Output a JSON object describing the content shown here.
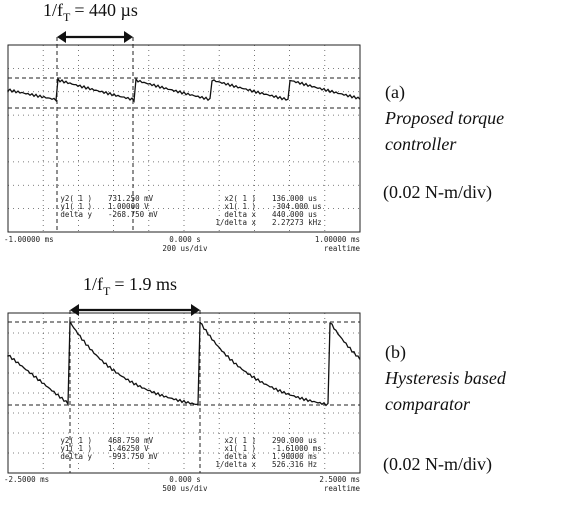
{
  "panel_a": {
    "period_label": {
      "prefix": "1/f",
      "subscript": "T",
      "suffix": "= 440 µs"
    },
    "readouts_left": [
      [
        "y2( 1 )",
        "731.250 mV"
      ],
      [
        "y1( 1 )",
        "1.00000 V"
      ],
      [
        "delta y",
        "-268.750 mV"
      ]
    ],
    "readouts_right": [
      [
        "x2( 1 )",
        "136.000 us"
      ],
      [
        "x1( 1 )",
        "-304.000 us"
      ],
      [
        "delta x",
        "440.000 us"
      ],
      [
        "1/delta x",
        "2.27273 kHz"
      ]
    ],
    "axis": {
      "left": "-1.00000 ms",
      "center": "0.000 s",
      "scale": "200 us/div",
      "right": "1.00000 ms",
      "mode": "realtime"
    },
    "tag": "(a)",
    "caption": [
      "Proposed torque",
      "controller"
    ],
    "gain": "(0.02 N-m/div)"
  },
  "panel_b": {
    "period_label": {
      "prefix": "1/f",
      "subscript": "T",
      "suffix": "= 1.9 ms"
    },
    "readouts_left": [
      [
        "y2( 1 )",
        "468.750 mV"
      ],
      [
        "y1( 1 )",
        "1.46250 V"
      ],
      [
        "delta y",
        "-993.750 mV"
      ]
    ],
    "readouts_right": [
      [
        "x2( 1 )",
        "290.000 us"
      ],
      [
        "x1( 1 )",
        "-1.61000 ms"
      ],
      [
        "delta x",
        "1.90000 ms"
      ],
      [
        "1/delta x",
        "526.316 Hz"
      ]
    ],
    "axis": {
      "left": "-2.5000 ms",
      "center": "0.000 s",
      "scale": "500 us/div",
      "right": "2.5000 ms",
      "mode": "realtime"
    },
    "tag": "(b)",
    "caption": [
      "Hysteresis based",
      "comparator"
    ],
    "gain": "(0.02 N-m/div)"
  }
}
